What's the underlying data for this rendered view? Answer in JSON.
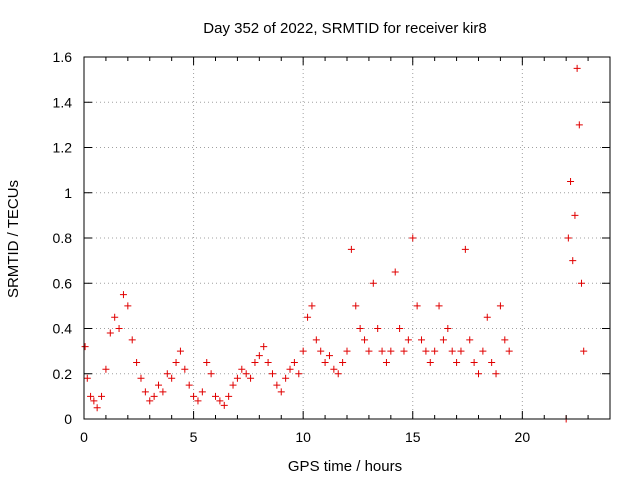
{
  "chart_data": {
    "type": "scatter",
    "title": "Day 352 of 2022, SRMTID for receiver kir8",
    "xlabel": "GPS time / hours",
    "ylabel": "SRMTID / TECUs",
    "xlim": [
      0,
      24
    ],
    "ylim": [
      0,
      1.6
    ],
    "xticks": [
      0,
      5,
      10,
      15,
      20
    ],
    "xtick_labels": [
      "0",
      "5",
      "10",
      "15",
      "20"
    ],
    "yticks": [
      0,
      0.2,
      0.4,
      0.6,
      0.8,
      1,
      1.2,
      1.4,
      1.6
    ],
    "ytick_labels": [
      "0",
      "0.2",
      "0.4",
      "0.6",
      "0.8",
      "1",
      "1.2",
      "1.4",
      "1.6"
    ],
    "grid": true,
    "marker": "+",
    "color": "#e00000",
    "series": [
      {
        "name": "SRMTID",
        "x": [
          0.05,
          0.15,
          0.3,
          0.45,
          0.6,
          0.8,
          1.0,
          1.2,
          1.4,
          1.6,
          1.8,
          2.0,
          2.2,
          2.4,
          2.6,
          2.8,
          3.0,
          3.2,
          3.4,
          3.6,
          3.8,
          4.0,
          4.2,
          4.4,
          4.6,
          4.8,
          5.0,
          5.2,
          5.4,
          5.6,
          5.8,
          6.0,
          6.2,
          6.4,
          6.6,
          6.8,
          7.0,
          7.2,
          7.4,
          7.6,
          7.8,
          8.0,
          8.2,
          8.4,
          8.6,
          8.8,
          9.0,
          9.2,
          9.4,
          9.6,
          9.8,
          10.0,
          10.2,
          10.4,
          10.6,
          10.8,
          11.0,
          11.2,
          11.4,
          11.6,
          11.8,
          12.0,
          12.2,
          12.4,
          12.6,
          12.8,
          13.0,
          13.2,
          13.4,
          13.6,
          13.8,
          14.0,
          14.2,
          14.4,
          14.6,
          14.8,
          15.0,
          15.2,
          15.4,
          15.6,
          15.8,
          16.0,
          16.2,
          16.4,
          16.6,
          16.8,
          17.0,
          17.2,
          17.4,
          17.6,
          17.8,
          18.0,
          18.2,
          18.4,
          18.6,
          18.8,
          19.0,
          19.2,
          19.4,
          22.0,
          22.1,
          22.2,
          22.3,
          22.4,
          22.5,
          22.6,
          22.7,
          22.8
        ],
        "y": [
          0.32,
          0.18,
          0.1,
          0.08,
          0.05,
          0.1,
          0.22,
          0.38,
          0.45,
          0.4,
          0.55,
          0.5,
          0.35,
          0.25,
          0.18,
          0.12,
          0.08,
          0.1,
          0.15,
          0.12,
          0.2,
          0.18,
          0.25,
          0.3,
          0.22,
          0.15,
          0.1,
          0.08,
          0.12,
          0.25,
          0.2,
          0.1,
          0.08,
          0.06,
          0.1,
          0.15,
          0.18,
          0.22,
          0.2,
          0.18,
          0.25,
          0.28,
          0.32,
          0.25,
          0.2,
          0.15,
          0.12,
          0.18,
          0.22,
          0.25,
          0.2,
          0.3,
          0.45,
          0.5,
          0.35,
          0.3,
          0.25,
          0.28,
          0.22,
          0.2,
          0.25,
          0.3,
          0.75,
          0.5,
          0.4,
          0.35,
          0.3,
          0.6,
          0.4,
          0.3,
          0.25,
          0.3,
          0.65,
          0.4,
          0.3,
          0.35,
          0.8,
          0.5,
          0.35,
          0.3,
          0.25,
          0.3,
          0.5,
          0.35,
          0.4,
          0.3,
          0.25,
          0.3,
          0.75,
          0.35,
          0.25,
          0.2,
          0.3,
          0.45,
          0.25,
          0.2,
          0.5,
          0.35,
          0.3,
          0.0,
          0.8,
          1.05,
          0.7,
          0.9,
          1.55,
          1.3,
          0.6,
          0.3
        ]
      }
    ]
  }
}
